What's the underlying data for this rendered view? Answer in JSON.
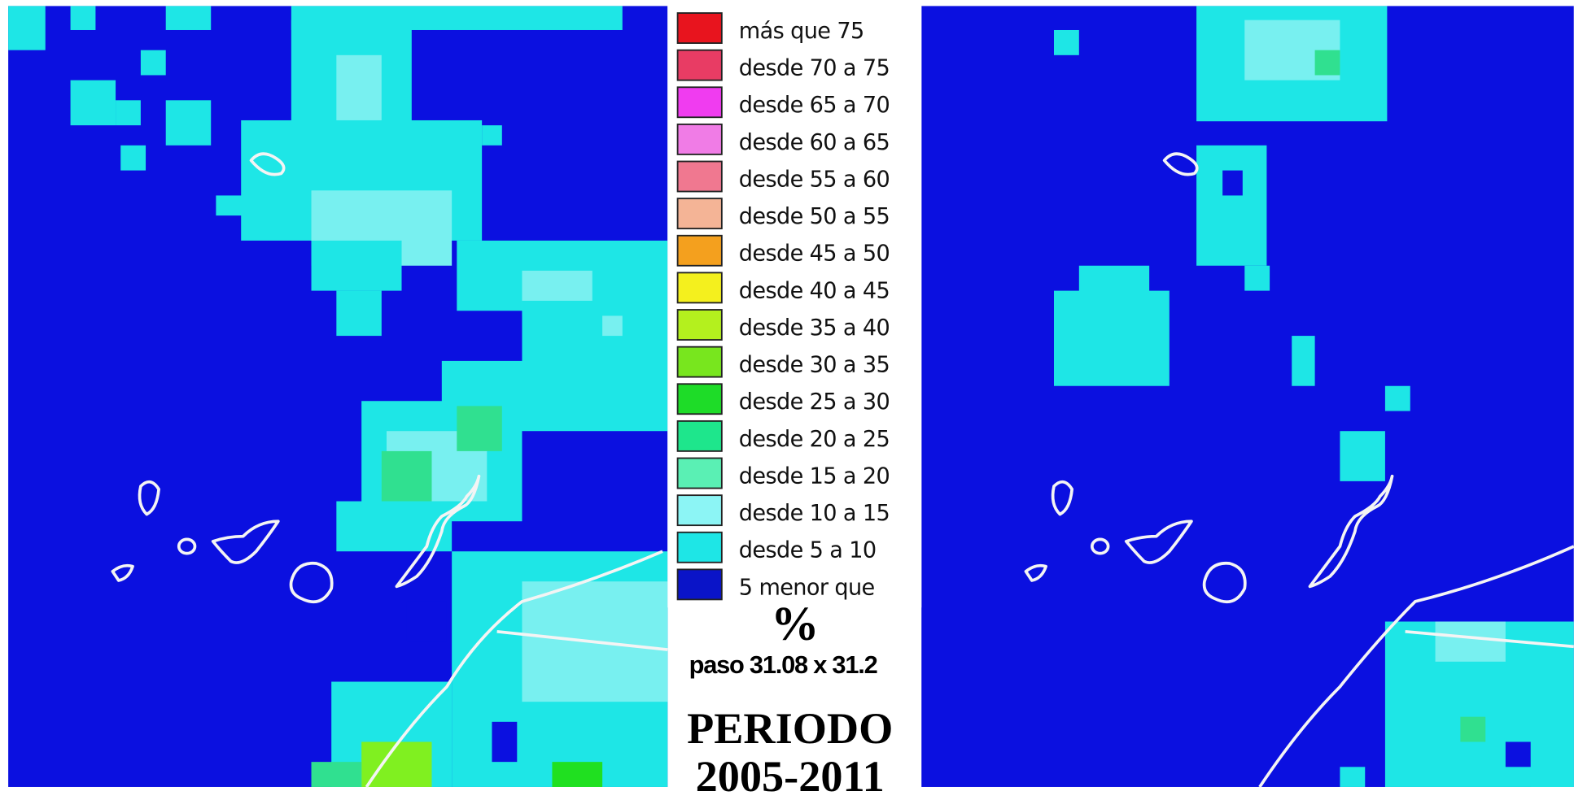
{
  "legend": {
    "items": [
      {
        "label": "más que 75",
        "color": "#e8141e"
      },
      {
        "label": "desde 70 a 75",
        "color": "#e83c64"
      },
      {
        "label": "desde 65 a 70",
        "color": "#f03cf0"
      },
      {
        "label": "desde 60 a 65",
        "color": "#f07ce6"
      },
      {
        "label": "desde 55 a 60",
        "color": "#f07890"
      },
      {
        "label": "desde 50 a 55",
        "color": "#f4b496"
      },
      {
        "label": "desde 45 a 50",
        "color": "#f4a01e"
      },
      {
        "label": "desde 40 a 45",
        "color": "#f4f01e"
      },
      {
        "label": "desde 35 a 40",
        "color": "#b4f01e"
      },
      {
        "label": "desde 30 a 35",
        "color": "#78e61e"
      },
      {
        "label": "desde 25 a 30",
        "color": "#1edc28"
      },
      {
        "label": "desde 20 a 25",
        "color": "#1ee68c"
      },
      {
        "label": "desde 15 a 20",
        "color": "#5af0b4"
      },
      {
        "label": "desde 10 a 15",
        "color": "#8cf5f5"
      },
      {
        "label": "desde 5 a 10",
        "color": "#1ee6e6"
      },
      {
        "label": "5 menor que",
        "color": "#0a14c8"
      }
    ],
    "unit": "%",
    "step": "paso 31.08 x 31.2"
  },
  "period": {
    "line1": "PERIODO",
    "line2": "2005-2011"
  }
}
